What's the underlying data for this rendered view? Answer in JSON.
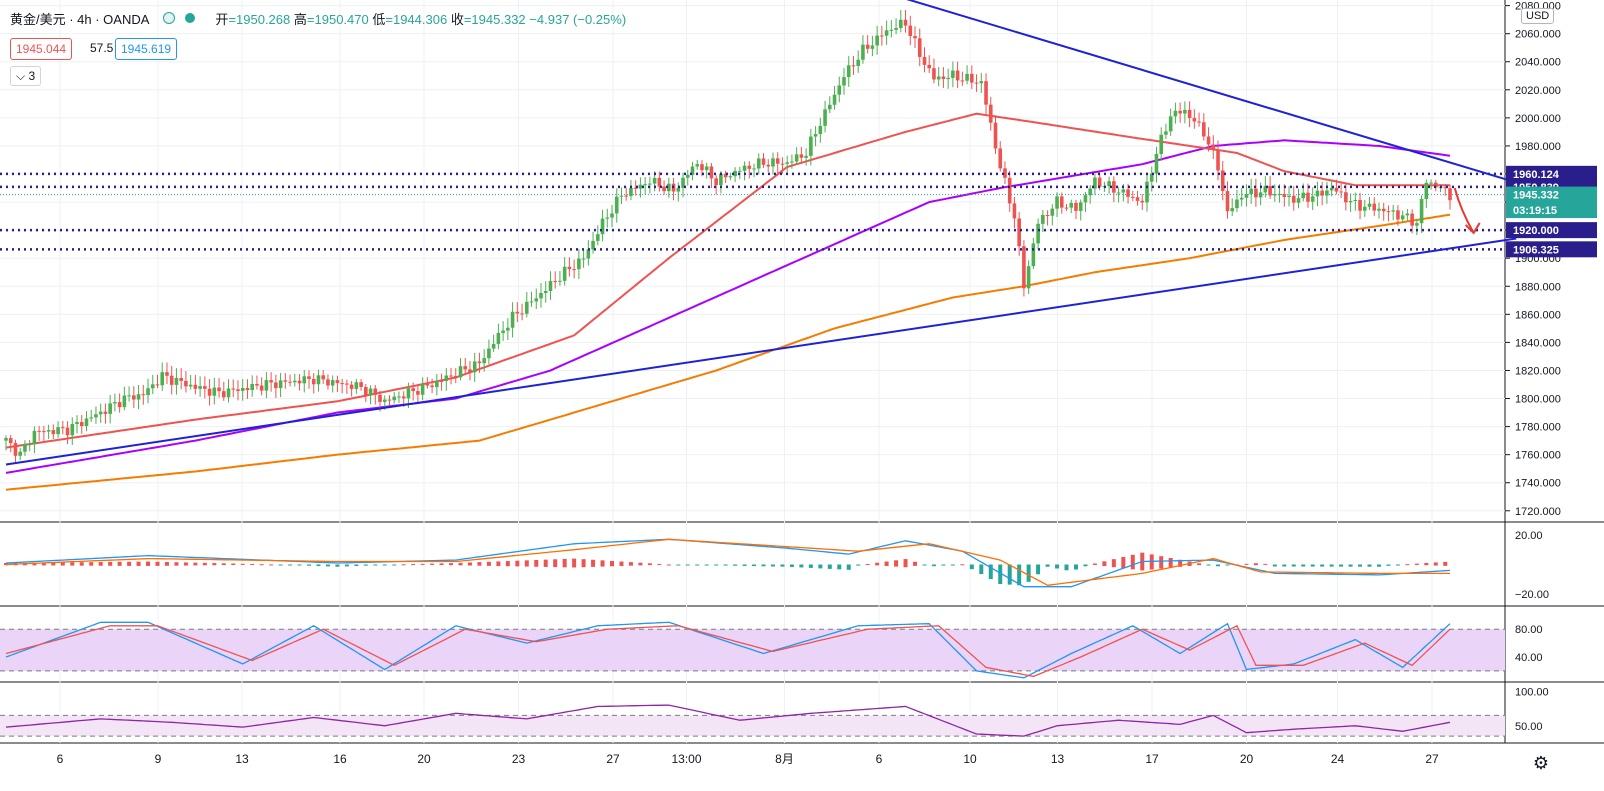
{
  "header": {
    "symbol": "黄金/美元 · 4h · OANDA",
    "ohlc_open_label": "开",
    "ohlc_open": "=1950.268",
    "ohlc_high_label": "高",
    "ohlc_high": "=1950.470",
    "ohlc_low_label": "低",
    "ohlc_low": "=1944.306",
    "ohlc_close_label": "收",
    "ohlc_close": "=1945.332",
    "ohlc_change": "−4.937 (−0.25%)",
    "sell_price": "1945.044",
    "spread": "57.5",
    "buy_price": "1945.619",
    "indicators_toggle": "3"
  },
  "currency": "USD",
  "colors": {
    "up": "#26a69a",
    "down": "#ef5350",
    "up_body": "#4caf50",
    "trendline": "#1e22d6",
    "ma_fast": "#ef5350",
    "ma_mid": "#aa00ff",
    "ma_slow": "#f57c00",
    "hline": "#2a1e8c",
    "macd": "#2196f3",
    "signal": "#ff6d00",
    "stoch_k": "#2196f3",
    "stoch_d": "#ef5350",
    "rsi": "#8e24aa",
    "band": "#e1bee7"
  },
  "chart_data": {
    "type": "candlestick",
    "timeframe": "4h",
    "x_ticks": [
      "6",
      "9",
      "13",
      "16",
      "20",
      "23",
      "27",
      "13:00",
      "8月",
      "6",
      "10",
      "13",
      "17",
      "20",
      "24",
      "27"
    ],
    "y_ticks": [
      1720,
      1740,
      1760,
      1780,
      1800,
      1820,
      1840,
      1860,
      1880,
      1900,
      1920,
      1940,
      1960,
      1980,
      2000,
      2020,
      2040,
      2060,
      2080
    ],
    "ylim": [
      1712,
      2084
    ],
    "price_labels": [
      {
        "value": 1960.124,
        "text": "1960.124",
        "bg": "#2a1e8c"
      },
      {
        "value": 1950.839,
        "text": "1950.839",
        "bg": "#2a1e8c"
      },
      {
        "value": 1945.332,
        "text": "1945.332",
        "bg": "#26a69a"
      },
      {
        "value": 1934.3,
        "text": "03:19:15",
        "bg": "#26a69a"
      },
      {
        "value": 1920.0,
        "text": "1920.000",
        "bg": "#2a1e8c"
      },
      {
        "value": 1906.325,
        "text": "1906.325",
        "bg": "#2a1e8c"
      }
    ],
    "horizontal_levels": [
      1960.124,
      1950.839,
      1920.0,
      1906.325
    ],
    "trendlines": [
      {
        "from": [
          0,
          1753
        ],
        "to": [
          319,
          1914
        ]
      },
      {
        "from": [
          184,
          2091
        ],
        "to": [
          319,
          1954
        ]
      }
    ],
    "ma_fast": [
      [
        0,
        1765
      ],
      [
        40,
        1785
      ],
      [
        70,
        1798
      ],
      [
        95,
        1815
      ],
      [
        120,
        1845
      ],
      [
        140,
        1900
      ],
      [
        165,
        1965
      ],
      [
        190,
        1990
      ],
      [
        205,
        2003
      ],
      [
        215,
        1998
      ],
      [
        240,
        1985
      ],
      [
        260,
        1975
      ],
      [
        270,
        1962
      ],
      [
        285,
        1952
      ],
      [
        305,
        1952
      ]
    ],
    "ma_mid": [
      [
        0,
        1747
      ],
      [
        40,
        1770
      ],
      [
        70,
        1790
      ],
      [
        95,
        1800
      ],
      [
        115,
        1820
      ],
      [
        135,
        1850
      ],
      [
        155,
        1880
      ],
      [
        175,
        1910
      ],
      [
        195,
        1940
      ],
      [
        210,
        1950
      ],
      [
        240,
        1967
      ],
      [
        255,
        1980
      ],
      [
        270,
        1984
      ],
      [
        290,
        1980
      ],
      [
        305,
        1973
      ]
    ],
    "ma_slow": [
      [
        0,
        1735
      ],
      [
        40,
        1748
      ],
      [
        70,
        1760
      ],
      [
        100,
        1770
      ],
      [
        125,
        1795
      ],
      [
        150,
        1820
      ],
      [
        175,
        1850
      ],
      [
        200,
        1872
      ],
      [
        215,
        1880
      ],
      [
        230,
        1890
      ],
      [
        250,
        1900
      ],
      [
        270,
        1913
      ],
      [
        290,
        1923
      ],
      [
        305,
        1931
      ]
    ],
    "price_path": [
      [
        0,
        1770
      ],
      [
        3,
        1760
      ],
      [
        6,
        1776
      ],
      [
        13,
        1778
      ],
      [
        20,
        1790
      ],
      [
        25,
        1800
      ],
      [
        29,
        1803
      ],
      [
        33,
        1816
      ],
      [
        40,
        1808
      ],
      [
        45,
        1804
      ],
      [
        55,
        1810
      ],
      [
        65,
        1814
      ],
      [
        75,
        1808
      ],
      [
        80,
        1798
      ],
      [
        90,
        1810
      ],
      [
        95,
        1818
      ],
      [
        100,
        1825
      ],
      [
        103,
        1840
      ],
      [
        107,
        1858
      ],
      [
        112,
        1872
      ],
      [
        118,
        1890
      ],
      [
        122,
        1900
      ],
      [
        126,
        1925
      ],
      [
        130,
        1945
      ],
      [
        136,
        1955
      ],
      [
        141,
        1948
      ],
      [
        146,
        1968
      ],
      [
        150,
        1955
      ],
      [
        155,
        1963
      ],
      [
        160,
        1968
      ],
      [
        165,
        1968
      ],
      [
        169,
        1975
      ],
      [
        171,
        1990
      ],
      [
        174,
        2010
      ],
      [
        177,
        2030
      ],
      [
        181,
        2048
      ],
      [
        186,
        2062
      ],
      [
        190,
        2068
      ],
      [
        193,
        2045
      ],
      [
        196,
        2028
      ],
      [
        200,
        2030
      ],
      [
        206,
        2025
      ],
      [
        210,
        1965
      ],
      [
        213,
        1930
      ],
      [
        215,
        1880
      ],
      [
        218,
        1925
      ],
      [
        222,
        1940
      ],
      [
        226,
        1935
      ],
      [
        230,
        1955
      ],
      [
        235,
        1948
      ],
      [
        240,
        1940
      ],
      [
        243,
        1975
      ],
      [
        246,
        2002
      ],
      [
        249,
        2005
      ],
      [
        253,
        1990
      ],
      [
        256,
        1965
      ],
      [
        258,
        1932
      ],
      [
        261,
        1945
      ],
      [
        266,
        1948
      ],
      [
        272,
        1942
      ],
      [
        277,
        1945
      ],
      [
        280,
        1950
      ],
      [
        285,
        1938
      ],
      [
        290,
        1935
      ],
      [
        295,
        1930
      ],
      [
        298,
        1925
      ],
      [
        300,
        1955
      ],
      [
        303,
        1950
      ],
      [
        305,
        1945
      ]
    ],
    "macd": {
      "ylim": [
        -28,
        28
      ],
      "y_ticks": [
        20,
        -20
      ],
      "macd_line": [
        [
          0,
          1
        ],
        [
          30,
          6
        ],
        [
          70,
          1
        ],
        [
          95,
          3
        ],
        [
          120,
          14
        ],
        [
          140,
          17
        ],
        [
          165,
          11
        ],
        [
          178,
          7
        ],
        [
          190,
          16
        ],
        [
          202,
          9
        ],
        [
          215,
          -15
        ],
        [
          225,
          -15
        ],
        [
          240,
          2
        ],
        [
          255,
          3
        ],
        [
          268,
          -6
        ],
        [
          290,
          -7
        ],
        [
          305,
          -4
        ]
      ],
      "signal_line": [
        [
          0,
          0
        ],
        [
          30,
          4
        ],
        [
          70,
          2
        ],
        [
          95,
          2
        ],
        [
          120,
          10
        ],
        [
          140,
          17
        ],
        [
          165,
          12
        ],
        [
          180,
          9
        ],
        [
          195,
          14
        ],
        [
          210,
          3
        ],
        [
          220,
          -14
        ],
        [
          240,
          -6
        ],
        [
          255,
          4
        ],
        [
          265,
          -5
        ],
        [
          290,
          -6
        ],
        [
          305,
          -6
        ]
      ]
    },
    "stoch": {
      "ylim": [
        4,
        112
      ],
      "y_ticks": [
        80,
        40
      ],
      "band": [
        20,
        80
      ],
      "k_line": [
        [
          0,
          40
        ],
        [
          20,
          90
        ],
        [
          30,
          90
        ],
        [
          50,
          30
        ],
        [
          65,
          85
        ],
        [
          80,
          22
        ],
        [
          95,
          85
        ],
        [
          110,
          60
        ],
        [
          125,
          85
        ],
        [
          140,
          90
        ],
        [
          160,
          45
        ],
        [
          180,
          85
        ],
        [
          195,
          88
        ],
        [
          205,
          20
        ],
        [
          215,
          10
        ],
        [
          225,
          45
        ],
        [
          238,
          85
        ],
        [
          248,
          45
        ],
        [
          258,
          88
        ],
        [
          262,
          22
        ],
        [
          272,
          30
        ],
        [
          285,
          65
        ],
        [
          295,
          25
        ],
        [
          305,
          88
        ]
      ],
      "d_line": [
        [
          0,
          45
        ],
        [
          22,
          85
        ],
        [
          32,
          85
        ],
        [
          52,
          35
        ],
        [
          67,
          80
        ],
        [
          82,
          28
        ],
        [
          97,
          80
        ],
        [
          112,
          62
        ],
        [
          127,
          80
        ],
        [
          142,
          85
        ],
        [
          162,
          48
        ],
        [
          182,
          80
        ],
        [
          197,
          85
        ],
        [
          207,
          25
        ],
        [
          217,
          12
        ],
        [
          227,
          40
        ],
        [
          240,
          80
        ],
        [
          250,
          50
        ],
        [
          260,
          85
        ],
        [
          264,
          28
        ],
        [
          274,
          28
        ],
        [
          287,
          60
        ],
        [
          297,
          28
        ],
        [
          305,
          80
        ]
      ]
    },
    "rsi": {
      "ylim": [
        25,
        112
      ],
      "y_ticks": [
        100,
        50
      ],
      "band": [
        35,
        65
      ],
      "line": [
        [
          0,
          48
        ],
        [
          20,
          60
        ],
        [
          35,
          55
        ],
        [
          50,
          48
        ],
        [
          65,
          62
        ],
        [
          80,
          50
        ],
        [
          95,
          68
        ],
        [
          110,
          60
        ],
        [
          125,
          78
        ],
        [
          140,
          80
        ],
        [
          155,
          58
        ],
        [
          170,
          68
        ],
        [
          190,
          78
        ],
        [
          205,
          38
        ],
        [
          215,
          35
        ],
        [
          222,
          50
        ],
        [
          235,
          58
        ],
        [
          248,
          52
        ],
        [
          255,
          65
        ],
        [
          262,
          40
        ],
        [
          272,
          45
        ],
        [
          285,
          50
        ],
        [
          295,
          42
        ],
        [
          305,
          55
        ]
      ]
    }
  }
}
